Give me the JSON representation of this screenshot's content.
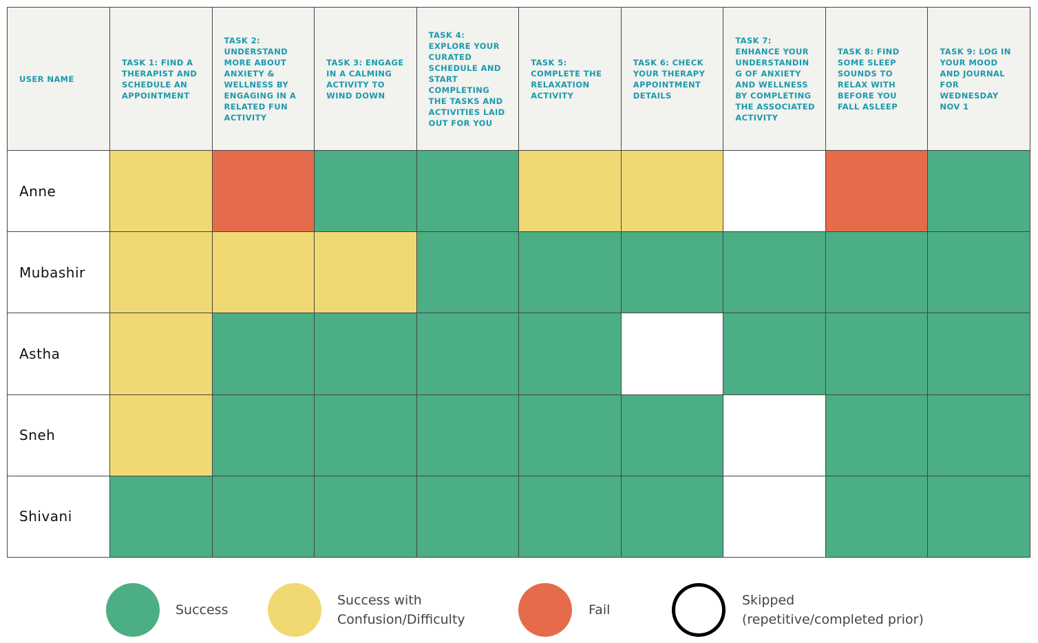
{
  "table": {
    "header": "USER NAME",
    "tasks": [
      "TASK 1: FIND A THERAPIST AND SCHEDULE AN APPOINTMENT",
      "TASK 2: UNDERSTAND MORE ABOUT ANXIETY & WELLNESS BY ENGAGING IN A RELATED FUN ACTIVITY",
      "TASK 3: ENGAGE IN A CALMING ACTIVITY TO WIND DOWN",
      "TASK 4: EXPLORE YOUR CURATED SCHEDULE AND START COMPLETING THE TASKS AND ACTIVITIES LAID OUT FOR YOU",
      "TASK 5: COMPLETE THE RELAXATION ACTIVITY",
      "TASK 6: CHECK YOUR THERAPY APPOINTMENT DETAILS",
      "TASK 7: ENHANCE YOUR UNDERSTANDING OF ANXIETY AND WELLNESS BY COMPLETING THE ASSOCIATED ACTIVITY",
      "TASK 8: FIND SOME SLEEP SOUNDS TO RELAX WITH BEFORE YOU FALL ASLEEP",
      "TASK 9: LOG IN YOUR MOOD AND JOURNAL FOR WEDNESDAY NOV 1"
    ],
    "rows": [
      {
        "name": "Anne",
        "results": [
          1,
          2,
          0,
          0,
          1,
          1,
          3,
          2,
          0
        ]
      },
      {
        "name": "Mubashir",
        "results": [
          1,
          1,
          1,
          0,
          0,
          0,
          0,
          0,
          0
        ]
      },
      {
        "name": "Astha",
        "results": [
          1,
          0,
          0,
          0,
          0,
          3,
          0,
          0,
          0
        ]
      },
      {
        "name": "Sneh",
        "results": [
          1,
          0,
          0,
          0,
          0,
          0,
          3,
          0,
          0
        ]
      },
      {
        "name": "Shivani",
        "results": [
          0,
          0,
          0,
          0,
          0,
          0,
          3,
          0,
          0
        ]
      }
    ]
  },
  "legend": [
    {
      "lines": [
        "Success"
      ],
      "color": "#4cae84"
    },
    {
      "lines": [
        "Success with",
        "Confusion/Difficulty"
      ],
      "color": "#f0d873"
    },
    {
      "lines": [
        "Fail"
      ],
      "color": "#e66b4b"
    },
    {
      "lines": [
        "Skipped",
        "(repetitive/completed prior)"
      ],
      "color": "#ffffff"
    }
  ]
}
